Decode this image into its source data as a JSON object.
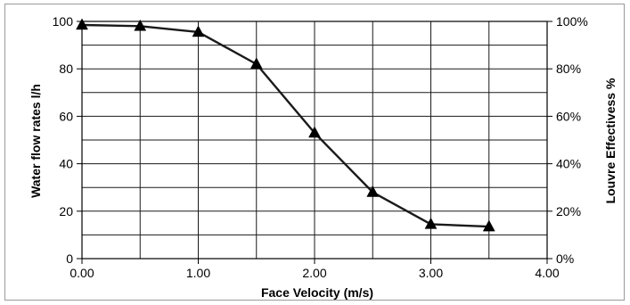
{
  "chart_data": {
    "type": "line",
    "title": "",
    "xlabel": "Face Velocity (m/s)",
    "ylabel": "Water flow rates l/h",
    "y2label": "Louvre Effectivess %",
    "xlim": [
      0,
      4
    ],
    "ylim": [
      0,
      100
    ],
    "y2lim": [
      0,
      100
    ],
    "grid": true,
    "x_ticks": [
      0,
      1,
      2,
      3,
      4
    ],
    "x_tick_labels": [
      "0.00",
      "1.00",
      "2.00",
      "3.00",
      "4.00"
    ],
    "y_ticks": [
      0,
      20,
      40,
      60,
      80,
      100
    ],
    "y_tick_labels": [
      "0",
      "20",
      "40",
      "60",
      "80",
      "100"
    ],
    "y2_ticks": [
      0,
      20,
      40,
      60,
      80,
      100
    ],
    "y2_tick_labels": [
      "0%",
      "20%",
      "40%",
      "60%",
      "80%",
      "100%"
    ],
    "x_minor_step": 0.5,
    "y_minor_step": 10,
    "series": [
      {
        "marker": "triangle",
        "color": "#1a1a1a",
        "x": [
          0.0,
          0.5,
          1.0,
          1.5,
          2.0,
          2.5,
          3.0,
          3.5
        ],
        "y": [
          98.5,
          98,
          95.5,
          82,
          53,
          28,
          14.5,
          13.5
        ]
      }
    ]
  }
}
